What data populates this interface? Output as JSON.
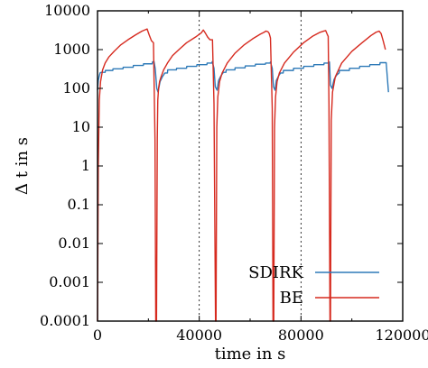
{
  "chart_data": {
    "type": "line",
    "title": "",
    "xlabel": "time in s",
    "ylabel": "Δ t in s",
    "xlim": [
      0,
      120000
    ],
    "ylim": [
      0.0001,
      10000
    ],
    "yscale": "log",
    "grid": true,
    "legend_position": "bottom-right",
    "x_ticks": [
      0,
      40000,
      80000,
      120000
    ],
    "x_tick_labels": [
      "0",
      "40000",
      "80000",
      "120000"
    ],
    "y_ticks": [
      0.0001,
      0.001,
      0.01,
      0.1,
      1,
      10,
      100,
      1000,
      10000
    ],
    "y_tick_labels": [
      "0.0001",
      "0.001",
      "0.01",
      "0.1",
      "1",
      "10",
      "100",
      "1000",
      "10000"
    ],
    "series": [
      {
        "name": "SDIRK",
        "color": "#2e7ab8",
        "x": [
          0,
          300,
          600,
          1000,
          1500,
          3000,
          3100,
          6000,
          6100,
          10000,
          10100,
          14000,
          14100,
          18000,
          18100,
          21500,
          21600,
          22200,
          22700,
          23300,
          23800,
          24600,
          25500,
          26500,
          27500,
          27600,
          31000,
          31100,
          35000,
          35100,
          39000,
          39100,
          43000,
          43100,
          45000,
          45100,
          45800,
          46300,
          47000,
          47600,
          48500,
          49500,
          50500,
          50600,
          54000,
          54100,
          58000,
          58100,
          62000,
          62100,
          66000,
          66100,
          67900,
          68000,
          68700,
          69200,
          69800,
          70300,
          71200,
          72000,
          73000,
          73100,
          77000,
          77100,
          81000,
          81100,
          85000,
          85100,
          89000,
          89100,
          91000,
          91200,
          91600,
          92200,
          93000,
          94000,
          95000,
          95100,
          99000,
          99100,
          103000,
          103100,
          107000,
          107100,
          111000,
          111100,
          113500,
          114400
        ],
        "y": [
          90,
          160,
          200,
          250,
          260,
          260,
          290,
          290,
          320,
          320,
          350,
          350,
          390,
          390,
          430,
          430,
          480,
          500,
          320,
          100,
          80,
          150,
          200,
          250,
          250,
          300,
          300,
          330,
          330,
          370,
          370,
          410,
          410,
          450,
          450,
          490,
          330,
          110,
          90,
          160,
          210,
          260,
          260,
          300,
          300,
          340,
          340,
          380,
          380,
          420,
          420,
          450,
          450,
          480,
          330,
          110,
          90,
          160,
          210,
          250,
          250,
          290,
          290,
          330,
          330,
          370,
          370,
          410,
          410,
          450,
          450,
          480,
          120,
          100,
          170,
          220,
          250,
          290,
          290,
          330,
          330,
          370,
          370,
          410,
          410,
          460,
          460,
          80
        ]
      },
      {
        "name": "BE",
        "color": "#d62a1f",
        "x": [
          0,
          300,
          700,
          1200,
          2000,
          3000,
          4500,
          6500,
          9000,
          12000,
          15000,
          17500,
          19500,
          20300,
          21200,
          22000,
          22600,
          22900,
          23200,
          23500,
          23700,
          24000,
          24400,
          25000,
          26000,
          27500,
          29500,
          32000,
          35000,
          38500,
          40800,
          41600,
          42500,
          43300,
          44200,
          45200,
          45800,
          46400,
          46600,
          46900,
          47300,
          48000,
          49000,
          51000,
          54000,
          57500,
          61000,
          64000,
          65500,
          66200,
          67000,
          67500,
          68000,
          68700,
          69000,
          69300,
          69600,
          70000,
          70600,
          71500,
          73500,
          77000,
          81000,
          84500,
          87500,
          89000,
          89700,
          90300,
          90700,
          91000,
          91400,
          91600,
          91900,
          92400,
          93500,
          96000,
          100000,
          104000,
          107500,
          109500,
          110700,
          111500,
          112300,
          113200
        ],
        "y": [
          0.0001,
          1,
          50,
          150,
          300,
          450,
          650,
          900,
          1300,
          1800,
          2400,
          3000,
          3400,
          2400,
          1700,
          1500,
          5,
          0.0001,
          0.0001,
          5,
          50,
          100,
          150,
          200,
          300,
          450,
          700,
          1000,
          1500,
          2100,
          2700,
          3200,
          2600,
          2100,
          1800,
          1800,
          40,
          0.0001,
          0.0001,
          10,
          60,
          150,
          250,
          450,
          800,
          1300,
          1900,
          2500,
          2800,
          3000,
          2900,
          2600,
          2000,
          30,
          0.0001,
          0.0001,
          10,
          60,
          150,
          250,
          450,
          850,
          1500,
          2200,
          2800,
          3000,
          3100,
          2500,
          2200,
          40,
          0.0001,
          0.0001,
          15,
          80,
          200,
          450,
          900,
          1500,
          2300,
          2800,
          3000,
          2600,
          1700,
          1000
        ]
      }
    ]
  }
}
